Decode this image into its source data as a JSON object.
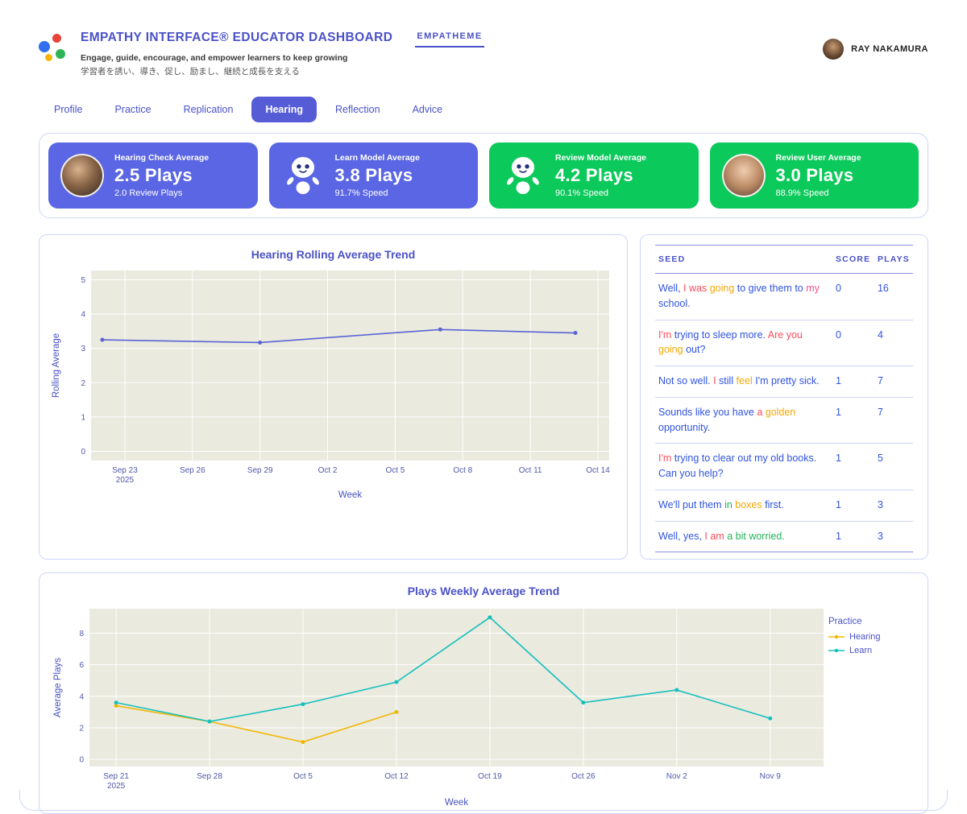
{
  "header": {
    "title": "EMPATHY INTERFACE® EDUCATOR DASHBOARD",
    "subtitle_en": "Engage, guide, encourage, and empower learners to keep growing",
    "subtitle_ja": "学習者を誘い、導き、促し、励まし、継続と成長を支える",
    "theme_tab": "EMPATHEME",
    "user_name": "RAY NAKAMURA"
  },
  "nav": {
    "items": [
      {
        "label": "Profile",
        "active": false
      },
      {
        "label": "Practice",
        "active": false
      },
      {
        "label": "Replication",
        "active": false
      },
      {
        "label": "Hearing",
        "active": true
      },
      {
        "label": "Reflection",
        "active": false
      },
      {
        "label": "Advice",
        "active": false
      }
    ]
  },
  "stat_cards": [
    {
      "label": "Hearing Check Average",
      "value": "2.5 Plays",
      "sub": "2.0 Review Plays",
      "color": "#5a66e3",
      "icon": "photo-child"
    },
    {
      "label": "Learn Model Average",
      "value": "3.8 Plays",
      "sub": "91.7% Speed",
      "color": "#5a66e3",
      "icon": "robot"
    },
    {
      "label": "Review Model Average",
      "value": "4.2 Plays",
      "sub": "90.1% Speed",
      "color": "#0cc95b",
      "icon": "robot"
    },
    {
      "label": "Review User Average",
      "value": "3.0 Plays",
      "sub": "88.9% Speed",
      "color": "#0cc95b",
      "icon": "photo-woman"
    }
  ],
  "seed_table": {
    "headers": [
      "SEED",
      "SCORE",
      "PLAYS"
    ],
    "palette": {
      "blue": "#2f53e0",
      "red": "#ff4b5c",
      "yellow": "#f5a800",
      "green": "#22b45a",
      "pink": "#ff4d94"
    },
    "rows": [
      {
        "seed": [
          [
            "Well, ",
            "blue"
          ],
          [
            "I was ",
            "red"
          ],
          [
            "going ",
            "yellow"
          ],
          [
            "to give them to ",
            "blue"
          ],
          [
            "my ",
            "pink"
          ],
          [
            "school.",
            "blue"
          ]
        ],
        "score": 0,
        "plays": 16
      },
      {
        "seed": [
          [
            "I'm ",
            "red"
          ],
          [
            "trying to sleep more. ",
            "blue"
          ],
          [
            "Are you ",
            "red"
          ],
          [
            "going ",
            "yellow"
          ],
          [
            "out?",
            "blue"
          ]
        ],
        "score": 0,
        "plays": 4
      },
      {
        "seed": [
          [
            "Not so well. ",
            "blue"
          ],
          [
            "I ",
            "red"
          ],
          [
            "still ",
            "blue"
          ],
          [
            "feel ",
            "yellow"
          ],
          [
            "I'm pretty sick.",
            "blue"
          ]
        ],
        "score": 1,
        "plays": 7
      },
      {
        "seed": [
          [
            "Sounds like you have ",
            "blue"
          ],
          [
            "a ",
            "red"
          ],
          [
            "golden ",
            "yellow"
          ],
          [
            "opportunity.",
            "blue"
          ]
        ],
        "score": 1,
        "plays": 7
      },
      {
        "seed": [
          [
            "I'm ",
            "red"
          ],
          [
            "trying to clear out my old books. ",
            "blue"
          ],
          [
            "Can you help?",
            "blue"
          ]
        ],
        "score": 1,
        "plays": 5
      },
      {
        "seed": [
          [
            "We'll put them ",
            "blue"
          ],
          [
            "in ",
            "green"
          ],
          [
            "boxes ",
            "yellow"
          ],
          [
            "first.",
            "blue"
          ]
        ],
        "score": 1,
        "plays": 3
      },
      {
        "seed": [
          [
            "Well, yes, ",
            "blue"
          ],
          [
            "I am ",
            "red"
          ],
          [
            "a bit worried.",
            "green"
          ]
        ],
        "score": 1,
        "plays": 3
      }
    ]
  },
  "chart_data": [
    {
      "type": "line",
      "title": "Hearing Rolling Average Trend",
      "xlabel": "Week",
      "ylabel": "Rolling Average",
      "x_unit": "days since Sep 21 2025",
      "xdomain": [
        0.5,
        23.5
      ],
      "ydomain": [
        -0.27,
        5.27
      ],
      "xticks": [
        {
          "v": 2,
          "label": "Sep 23",
          "label2": "2025"
        },
        {
          "v": 5,
          "label": "Sep 26"
        },
        {
          "v": 8,
          "label": "Sep 29"
        },
        {
          "v": 11,
          "label": "Oct 2"
        },
        {
          "v": 14,
          "label": "Oct 5"
        },
        {
          "v": 17,
          "label": "Oct 8"
        },
        {
          "v": 20,
          "label": "Oct 11"
        },
        {
          "v": 23,
          "label": "Oct 14"
        }
      ],
      "yticks": [
        0,
        1,
        2,
        3,
        4,
        5
      ],
      "bg": "#eaeadf",
      "grid": true,
      "series": [
        {
          "name": "Rolling Average",
          "color": "#5b63d3",
          "points": [
            [
              1,
              3.25
            ],
            [
              8,
              3.17
            ],
            [
              16,
              3.55
            ],
            [
              22,
              3.45
            ]
          ],
          "point_dates": [
            "Sep 22",
            "Sep 29",
            "Oct 7",
            "Oct 13"
          ]
        }
      ]
    },
    {
      "type": "line",
      "title": "Plays Weekly Average Trend",
      "xlabel": "Week",
      "ylabel": "Average Plays",
      "legend_title": "Practice",
      "legend_position": "right",
      "x_unit": "days since Sep 21 2025",
      "xdomain": [
        -2,
        53
      ],
      "ydomain": [
        -0.45,
        9.55
      ],
      "xticks": [
        {
          "v": 0,
          "label": "Sep 21",
          "label2": "2025"
        },
        {
          "v": 7,
          "label": "Sep 28"
        },
        {
          "v": 14,
          "label": "Oct 5"
        },
        {
          "v": 21,
          "label": "Oct 12"
        },
        {
          "v": 28,
          "label": "Oct 19"
        },
        {
          "v": 35,
          "label": "Oct 26"
        },
        {
          "v": 42,
          "label": "Nov 2"
        },
        {
          "v": 49,
          "label": "Nov 9"
        }
      ],
      "yticks": [
        0,
        2,
        4,
        6,
        8
      ],
      "bg": "#eaeadf",
      "grid": true,
      "series": [
        {
          "name": "Hearing",
          "color": "#f2b705",
          "points": [
            [
              0,
              3.4
            ],
            [
              7,
              2.4
            ],
            [
              14,
              1.1
            ],
            [
              21,
              3.0
            ]
          ],
          "point_dates": [
            "Sep 21",
            "Sep 28",
            "Oct 5",
            "Oct 12"
          ]
        },
        {
          "name": "Learn",
          "color": "#17c0bd",
          "points": [
            [
              0,
              3.6
            ],
            [
              7,
              2.4
            ],
            [
              14,
              3.5
            ],
            [
              21,
              4.9
            ],
            [
              28,
              9.0
            ],
            [
              35,
              3.6
            ],
            [
              42,
              4.4
            ],
            [
              49,
              2.6
            ]
          ],
          "point_dates": [
            "Sep 21",
            "Sep 28",
            "Oct 5",
            "Oct 12",
            "Oct 19",
            "Oct 26",
            "Nov 2",
            "Nov 9"
          ]
        }
      ]
    }
  ]
}
